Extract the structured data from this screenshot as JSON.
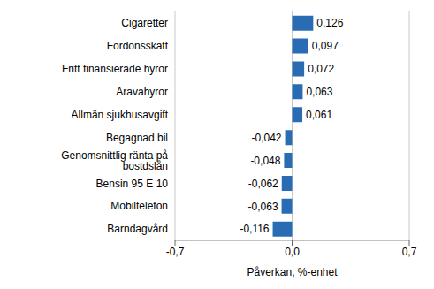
{
  "chart_data": {
    "type": "bar",
    "orientation": "horizontal",
    "x_label": "Påverkan, %-enhet",
    "categories": [
      "Cigaretter",
      "Fordonsskatt",
      "Fritt finansierade hyror",
      "Aravahyror",
      "Allmän sjukhusavgift",
      "Begagnad bil",
      "Genomsnittlig ränta på bostdslån",
      "Bensin 95 E 10",
      "Mobiltelefon",
      "Barndagvård"
    ],
    "values": [
      0.126,
      0.097,
      0.072,
      0.063,
      0.061,
      -0.042,
      -0.048,
      -0.062,
      -0.063,
      -0.116
    ],
    "value_labels": [
      "0,126",
      "0,097",
      "0,072",
      "0,063",
      "0,061",
      "-0,042",
      "-0,048",
      "-0,062",
      "-0,063",
      "-0,116"
    ],
    "data_labels": true,
    "color": "#2a6cb4",
    "xlim": [
      -0.7,
      0.7
    ],
    "xticks": [
      {
        "value": -0.7,
        "label": "-0,7"
      },
      {
        "value": 0,
        "label": "0,0"
      },
      {
        "value": 0.7,
        "label": "0,7"
      }
    ],
    "grid": true
  }
}
